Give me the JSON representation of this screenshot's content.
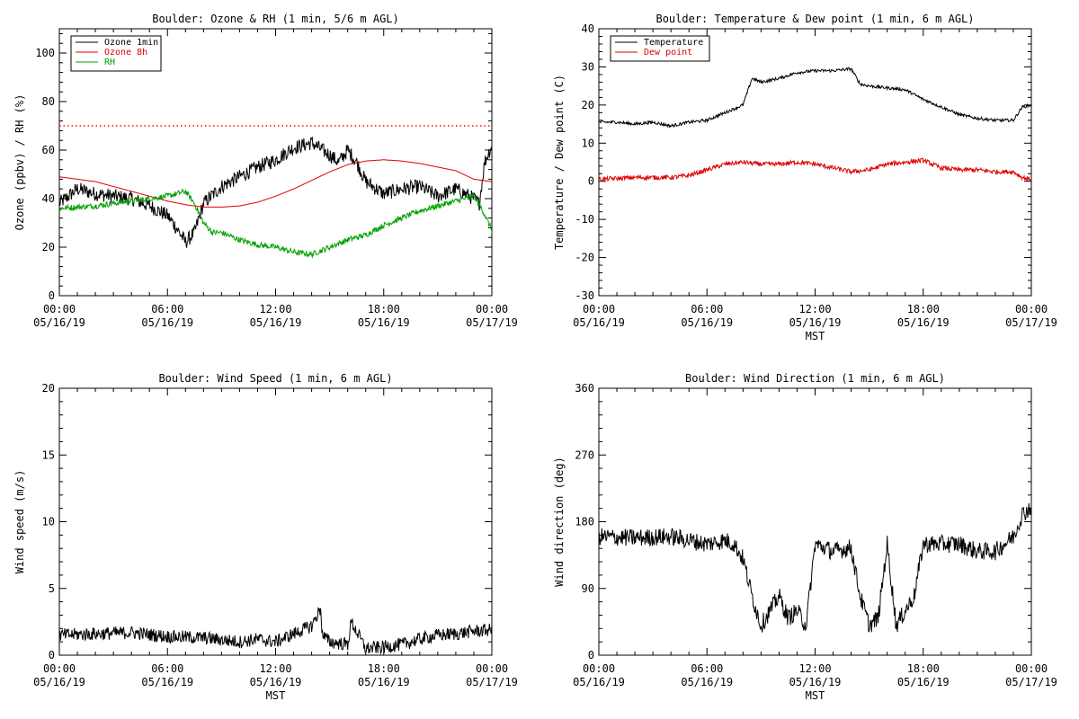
{
  "chart_data": [
    {
      "type": "line",
      "title": "Boulder: Ozone & RH (1 min, 5/6 m AGL)",
      "ylabel": "Ozone (ppbv) / RH (%)",
      "xlabel": "",
      "ylim": [
        0,
        110
      ],
      "yticks": [
        0,
        20,
        40,
        60,
        80,
        100
      ],
      "x_tick_labels": [
        [
          "00:00",
          "05/16/19"
        ],
        [
          "06:00",
          "05/16/19"
        ],
        [
          "12:00",
          "05/16/19"
        ],
        [
          "18:00",
          "05/16/19"
        ],
        [
          "00:00",
          "05/17/19"
        ]
      ],
      "x_range_hours": [
        0,
        24
      ],
      "reference_line": {
        "y": 70,
        "color": "#ff0000",
        "style": "dotted"
      },
      "legend_position": "top-left",
      "series": [
        {
          "name": "Ozone 1min",
          "color": "#000000",
          "noise": 3,
          "x": [
            0,
            1,
            2,
            3,
            4,
            5,
            6,
            6.5,
            7,
            7.5,
            8,
            9,
            10,
            11,
            12,
            13,
            14,
            15,
            15.5,
            16,
            16.5,
            17,
            18,
            19,
            20,
            21,
            22,
            23,
            23.3,
            23.6,
            24
          ],
          "y": [
            38,
            44,
            42,
            41,
            40,
            37,
            33,
            28,
            22,
            26,
            38,
            45,
            49,
            53,
            56,
            61,
            63,
            58,
            55,
            60,
            55,
            47,
            42,
            44,
            45,
            41,
            44,
            40,
            38,
            55,
            62
          ]
        },
        {
          "name": "Ozone 8h",
          "color": "#dd0000",
          "noise": 0,
          "x": [
            0,
            1,
            2,
            3,
            4,
            5,
            6,
            7,
            8,
            9,
            10,
            11,
            12,
            13,
            14,
            15,
            16,
            17,
            18,
            19,
            20,
            21,
            22,
            23,
            24
          ],
          "y": [
            49,
            48,
            47,
            45,
            43,
            41,
            39,
            37.5,
            36.5,
            36.5,
            37,
            38.5,
            41,
            44,
            47.5,
            51,
            54,
            55.5,
            56,
            55.5,
            54.5,
            53,
            51.5,
            48,
            47
          ]
        },
        {
          "name": "RH",
          "color": "#00a000",
          "noise": 1.2,
          "x": [
            0,
            2,
            4,
            6,
            7,
            7.5,
            8,
            8.5,
            9,
            10,
            11,
            12,
            13,
            14,
            15,
            16,
            17,
            18,
            19,
            20,
            21,
            22,
            23,
            23.5,
            24
          ],
          "y": [
            36,
            37,
            39,
            41,
            43,
            38,
            30,
            26,
            26,
            23,
            21,
            20,
            18,
            17,
            20,
            23,
            25,
            29,
            32,
            35,
            37,
            39,
            41,
            35,
            27
          ]
        }
      ]
    },
    {
      "type": "line",
      "title": "Boulder: Temperature & Dew point (1 min, 6 m AGL)",
      "ylabel": "Temperature / Dew point (C)",
      "xlabel": "MST",
      "ylim": [
        -30,
        40
      ],
      "yticks": [
        -30,
        -20,
        -10,
        0,
        10,
        20,
        30,
        40
      ],
      "x_tick_labels": [
        [
          "00:00",
          "05/16/19"
        ],
        [
          "06:00",
          "05/16/19"
        ],
        [
          "12:00",
          "05/16/19"
        ],
        [
          "18:00",
          "05/16/19"
        ],
        [
          "00:00",
          "05/17/19"
        ]
      ],
      "x_range_hours": [
        0,
        24
      ],
      "legend_position": "top-left",
      "series": [
        {
          "name": "Temperature",
          "color": "#000000",
          "noise": 0.4,
          "x": [
            0,
            1,
            2,
            3,
            3.5,
            4,
            5,
            6,
            7,
            8,
            8.5,
            9,
            10,
            11,
            12,
            13,
            14,
            14.5,
            15,
            16,
            17,
            18,
            19,
            20,
            21,
            22,
            23,
            23.5,
            24
          ],
          "y": [
            15.5,
            15.5,
            15,
            15.5,
            15,
            14.5,
            15.5,
            16,
            18,
            20,
            27,
            26,
            27,
            28.5,
            29,
            29,
            29.5,
            25.5,
            25,
            24.5,
            24,
            21.5,
            19.5,
            17.5,
            16.5,
            16,
            16,
            19.5,
            20
          ]
        },
        {
          "name": "Dew point",
          "color": "#dd0000",
          "noise": 0.6,
          "x": [
            0,
            2,
            4,
            5,
            6,
            7,
            8,
            9,
            10,
            11,
            12,
            13,
            14,
            15,
            16,
            17,
            18,
            19,
            20,
            21,
            22,
            23,
            23.5,
            24
          ],
          "y": [
            0.5,
            1,
            1,
            1.5,
            3,
            4.5,
            5,
            4.5,
            4.5,
            5,
            4.5,
            3.5,
            2.5,
            3,
            4.5,
            5,
            5.5,
            3.5,
            3,
            3,
            2.5,
            2.5,
            1,
            0.5
          ]
        }
      ]
    },
    {
      "type": "line",
      "title": "Boulder: Wind Speed (1 min, 6 m AGL)",
      "ylabel": "Wind speed (m/s)",
      "xlabel": "MST",
      "ylim": [
        0,
        20
      ],
      "yticks": [
        0,
        5,
        10,
        15,
        20
      ],
      "x_tick_labels": [
        [
          "00:00",
          "05/16/19"
        ],
        [
          "06:00",
          "05/16/19"
        ],
        [
          "12:00",
          "05/16/19"
        ],
        [
          "18:00",
          "05/16/19"
        ],
        [
          "00:00",
          "05/17/19"
        ]
      ],
      "x_range_hours": [
        0,
        24
      ],
      "series": [
        {
          "color": "#000000",
          "noise": 0.5,
          "x": [
            0,
            2,
            4,
            6,
            8,
            10,
            11,
            12,
            13,
            14,
            14.5,
            14.6,
            15,
            16,
            16.2,
            17,
            18,
            19,
            20,
            21,
            22,
            23,
            24
          ],
          "y": [
            1.5,
            1.6,
            1.7,
            1.4,
            1.3,
            1.0,
            1.2,
            1.0,
            1.6,
            2.2,
            3.5,
            1.5,
            1.0,
            0.8,
            2.5,
            0.5,
            0.6,
            0.8,
            1.2,
            1.5,
            1.6,
            1.8,
            1.9
          ]
        }
      ]
    },
    {
      "type": "line",
      "title": "Boulder: Wind Direction (1 min, 6 m AGL)",
      "ylabel": "Wind direction (deg)",
      "xlabel": "MST",
      "ylim": [
        0,
        360
      ],
      "yticks": [
        0,
        90,
        180,
        270,
        360
      ],
      "x_tick_labels": [
        [
          "00:00",
          "05/16/19"
        ],
        [
          "06:00",
          "05/16/19"
        ],
        [
          "12:00",
          "05/16/19"
        ],
        [
          "18:00",
          "05/16/19"
        ],
        [
          "00:00",
          "05/17/19"
        ]
      ],
      "x_range_hours": [
        0,
        24
      ],
      "series": [
        {
          "color": "#000000",
          "noise": 12,
          "x": [
            0,
            2,
            4,
            6,
            7,
            7.5,
            8,
            8.5,
            9,
            9.5,
            10,
            10.5,
            11,
            11.5,
            12,
            13,
            14,
            14.5,
            15,
            15.5,
            16,
            16.5,
            17,
            17.5,
            18,
            19,
            20,
            21,
            22,
            23,
            23.5,
            24
          ],
          "y": [
            160,
            158,
            160,
            150,
            155,
            150,
            130,
            80,
            40,
            60,
            80,
            50,
            60,
            40,
            150,
            140,
            145,
            80,
            40,
            50,
            150,
            40,
            60,
            80,
            150,
            150,
            150,
            140,
            140,
            160,
            190,
            200
          ]
        }
      ]
    }
  ]
}
